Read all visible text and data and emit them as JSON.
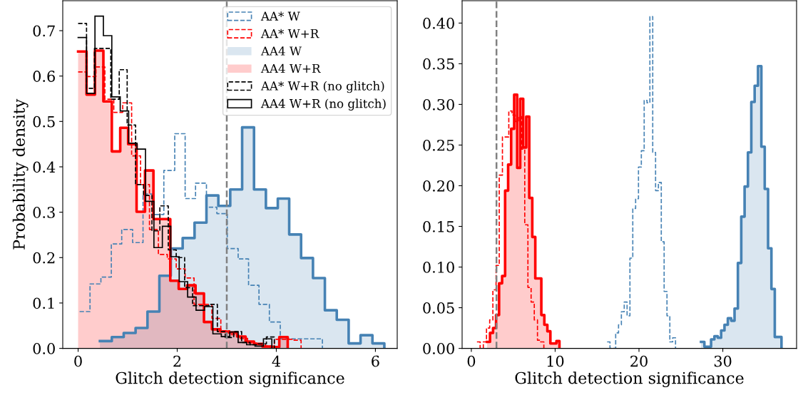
{
  "chart_data": [
    {
      "type": "histogram",
      "xlabel": "Glitch detection significance",
      "ylabel": "Probability density",
      "xlim": [
        -0.31,
        6.44
      ],
      "ylim": [
        0,
        0.766
      ],
      "xticks": [
        0,
        2,
        4,
        6
      ],
      "yticks": [
        {
          "value": 0,
          "label": "0.0"
        },
        {
          "value": 0.1,
          "label": "0.1"
        },
        {
          "value": 0.2,
          "label": "0.2"
        },
        {
          "value": 0.3,
          "label": "0.3"
        },
        {
          "value": 0.4,
          "label": "0.4"
        },
        {
          "value": 0.5,
          "label": "0.5"
        },
        {
          "value": 0.6,
          "label": "0.6"
        },
        {
          "value": 0.7,
          "label": "0.7"
        }
      ],
      "legend": "top right",
      "ref_lines": [
        {
          "axis": "x",
          "value": 3,
          "color": "#808080",
          "line_style": "dashed"
        }
      ],
      "series": [
        {
          "name": "AA* W",
          "type": "step",
          "line_style": "dashed",
          "color": "#4682b4",
          "x": [
            0.03,
            0.24,
            0.46,
            0.67,
            0.88,
            1.1,
            1.31,
            1.52,
            1.73,
            1.95,
            2.16,
            2.37,
            2.59,
            2.8,
            3.01,
            3.23,
            3.44,
            3.65,
            3.86,
            4.08,
            4.29,
            4.5,
            4.72,
            4.93
          ],
          "values": [
            0.081,
            0.142,
            0.157,
            0.23,
            0.262,
            0.233,
            0.34,
            0.295,
            0.392,
            0.473,
            0.33,
            0.364,
            0.311,
            0.297,
            0.22,
            0.197,
            0.139,
            0.097,
            0.058,
            0.021,
            0.021,
            0.021,
            0.021,
            0
          ]
        },
        {
          "name": "AA* W+R",
          "type": "step",
          "line_style": "dashed",
          "color": "#ff0000",
          "x": [
            0,
            0.18,
            0.36,
            0.54,
            0.72,
            0.9,
            1.08,
            1.26,
            1.44,
            1.62,
            1.8,
            1.98,
            2.16,
            2.34,
            2.52,
            2.7,
            2.88,
            3.06,
            3.24,
            3.42,
            3.6,
            3.78,
            3.96,
            4.14,
            4.32,
            4.5
          ],
          "values": [
            0.609,
            0.599,
            0.62,
            0.549,
            0.52,
            0.541,
            0.424,
            0.361,
            0.262,
            0.207,
            0.197,
            0.175,
            0.155,
            0.097,
            0.097,
            0.066,
            0.039,
            0.03,
            0.022,
            0.012,
            0.008,
            0.005,
            0.02,
            0.02,
            0.018,
            0
          ]
        },
        {
          "name": "AA4 W",
          "type": "area",
          "line_style": "solid",
          "color": "#4682b4",
          "x": [
            0.44,
            0.68,
            0.92,
            1.16,
            1.4,
            1.64,
            1.87,
            2.11,
            2.35,
            2.59,
            2.83,
            3.07,
            3.31,
            3.55,
            3.79,
            4.03,
            4.26,
            4.5,
            4.74,
            4.98,
            5.22,
            5.46,
            5.7,
            5.94,
            6.18
          ],
          "values": [
            0.016,
            0.025,
            0.034,
            0.045,
            0.081,
            0.16,
            0.22,
            0.243,
            0.277,
            0.337,
            0.314,
            0.35,
            0.487,
            0.35,
            0.309,
            0.33,
            0.251,
            0.199,
            0.155,
            0.084,
            0.063,
            0.011,
            0.029,
            0.011,
            0
          ]
        },
        {
          "name": "AA4 W+R",
          "type": "area",
          "line_style": "solid",
          "color": "#ff0000",
          "x": [
            0,
            0.17,
            0.34,
            0.51,
            0.68,
            0.85,
            1.01,
            1.18,
            1.35,
            1.52,
            1.69,
            1.86,
            2.03,
            2.2,
            2.37,
            2.54,
            2.7,
            2.87,
            3.04,
            3.21,
            3.38,
            3.55,
            3.72,
            3.89,
            4.06,
            4.23
          ],
          "values": [
            0.654,
            0.559,
            0.656,
            0.544,
            0.434,
            0.486,
            0.45,
            0.301,
            0.392,
            0.285,
            0.285,
            0.149,
            0.131,
            0.139,
            0.121,
            0.058,
            0.042,
            0.037,
            0.035,
            0.026,
            0.015,
            0.01,
            0.004,
            0.003,
            0.025,
            0
          ]
        },
        {
          "name": "AA* W+R (no glitch)",
          "type": "step",
          "line_style": "dashed",
          "color": "#000000",
          "x": [
            0,
            0.17,
            0.33,
            0.5,
            0.66,
            0.83,
            0.99,
            1.16,
            1.32,
            1.49,
            1.65,
            1.82,
            1.98,
            2.15,
            2.31,
            2.48,
            2.64,
            2.81,
            2.97,
            3.14,
            3.3,
            3.47,
            3.63,
            3.8,
            3.96
          ],
          "values": [
            0.716,
            0.573,
            0.661,
            0.661,
            0.549,
            0.614,
            0.492,
            0.361,
            0.337,
            0.259,
            0.314,
            0.217,
            0.2,
            0.134,
            0.094,
            0.094,
            0.097,
            0.037,
            0.024,
            0.037,
            0.013,
            0.008,
            0.01,
            0.025,
            0
          ]
        },
        {
          "name": "AA4 W+R (no glitch)",
          "type": "step",
          "line_style": "solid",
          "color": "#000000",
          "x": [
            0,
            0.17,
            0.34,
            0.51,
            0.68,
            0.85,
            1.02,
            1.19,
            1.36,
            1.53,
            1.7,
            1.87,
            2.04,
            2.21,
            2.38,
            2.55,
            2.72,
            2.89,
            3.06,
            3.23,
            3.4,
            3.57,
            3.74,
            3.91
          ],
          "values": [
            0.685,
            0.562,
            0.732,
            0.689,
            0.554,
            0.523,
            0.452,
            0.439,
            0.324,
            0.222,
            0.269,
            0.202,
            0.147,
            0.113,
            0.084,
            0.092,
            0.032,
            0.026,
            0.036,
            0.013,
            0.008,
            0.005,
            0.021,
            0
          ]
        }
      ]
    },
    {
      "type": "histogram",
      "xlabel": "Glitch detection significance",
      "xlim": [
        -1.1,
        38.8
      ],
      "ylim": [
        0,
        0.4275
      ],
      "xticks": [
        0,
        10,
        20,
        30
      ],
      "yticks": [
        {
          "value": 0,
          "label": "0.00"
        },
        {
          "value": 0.05,
          "label": "0.05"
        },
        {
          "value": 0.1,
          "label": "0.10"
        },
        {
          "value": 0.15,
          "label": "0.15"
        },
        {
          "value": 0.2,
          "label": "0.20"
        },
        {
          "value": 0.25,
          "label": "0.25"
        },
        {
          "value": 0.3,
          "label": "0.30"
        },
        {
          "value": 0.35,
          "label": "0.35"
        },
        {
          "value": 0.4,
          "label": "0.40"
        }
      ],
      "ref_lines": [
        {
          "axis": "x",
          "value": 3,
          "color": "#808080",
          "line_style": "dashed"
        }
      ],
      "series": [
        {
          "type": "step",
          "line_style": "dashed",
          "color": "#4682b4",
          "x": [
            16.2,
            16.54,
            16.88,
            17.22,
            17.56,
            17.9,
            18.24,
            18.58,
            18.92,
            19.26,
            19.6,
            19.94,
            20.28,
            20.62,
            20.96,
            21.3,
            21.64,
            21.98,
            22.32,
            22.66,
            23.0,
            23.34,
            23.68,
            24.02,
            24.36
          ],
          "values": [
            0.008,
            0,
            0,
            0.019,
            0.029,
            0.045,
            0.057,
            0.04,
            0.111,
            0.172,
            0.184,
            0.223,
            0.243,
            0.305,
            0.302,
            0.408,
            0.241,
            0.194,
            0.204,
            0.131,
            0.07,
            0.04,
            0.008,
            0.013,
            0
          ]
        },
        {
          "type": "step",
          "line_style": "dashed",
          "color": "#ff0000",
          "x": [
            0.67,
            1.05,
            1.43,
            1.81,
            2.19,
            2.57,
            2.95,
            3.33,
            3.71,
            4.09,
            4.47,
            4.85,
            5.23,
            5.61,
            5.99,
            6.37,
            6.75,
            7.13,
            7.51,
            7.89,
            8.27,
            8.65
          ],
          "values": [
            0.008,
            0,
            0.008,
            0.025,
            0.035,
            0.072,
            0.102,
            0.213,
            0.26,
            0.26,
            0.292,
            0.287,
            0.279,
            0.285,
            0.245,
            0.152,
            0.075,
            0.057,
            0.035,
            0.01,
            0.008,
            0
          ]
        },
        {
          "type": "area",
          "line_style": "solid",
          "color": "#4682b4",
          "x": [
            27.4,
            27.8,
            28.2,
            28.6,
            29.0,
            29.4,
            29.8,
            30.2,
            30.6,
            31.0,
            31.4,
            31.8,
            32.2,
            32.6,
            33.0,
            33.4,
            33.8,
            34.2,
            34.6,
            35.0,
            35.4,
            35.8,
            36.2,
            36.6,
            37.0
          ],
          "values": [
            0.008,
            0.002,
            0.002,
            0.011,
            0.015,
            0.013,
            0.022,
            0.029,
            0.037,
            0.034,
            0.049,
            0.105,
            0.162,
            0.199,
            0.241,
            0.303,
            0.323,
            0.347,
            0.248,
            0.196,
            0.123,
            0.073,
            0.014,
            0.014,
            0
          ]
        },
        {
          "type": "area",
          "line_style": "solid",
          "color": "#ff0000",
          "x": [
            1.87,
            2.23,
            2.59,
            2.95,
            3.31,
            3.67,
            4.03,
            4.39,
            4.75,
            5.11,
            5.47,
            5.83,
            6.19,
            6.55,
            6.91,
            7.27,
            7.63,
            7.99,
            8.35,
            8.71,
            9.07,
            9.43,
            9.79,
            10.15,
            10.51
          ],
          "values": [
            0.008,
            0.019,
            0.025,
            0.041,
            0.08,
            0.089,
            0.194,
            0.226,
            0.27,
            0.312,
            0.222,
            0.307,
            0.247,
            0.285,
            0.185,
            0.137,
            0.086,
            0.086,
            0.041,
            0.029,
            0.021,
            0.006,
            0.006,
            0.009,
            0
          ]
        }
      ]
    }
  ]
}
